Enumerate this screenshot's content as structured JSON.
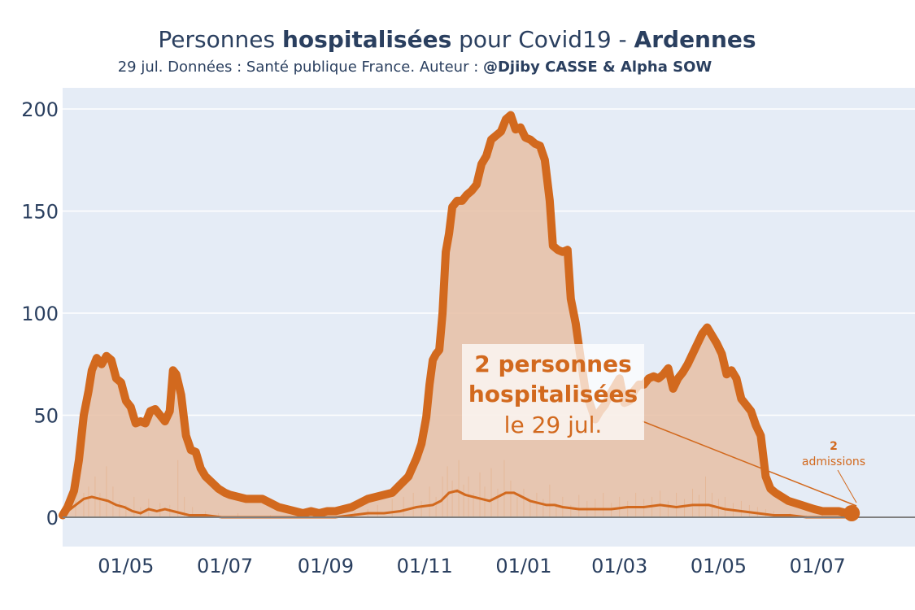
{
  "title": {
    "part1": "Personnes ",
    "part2": "hospitalisées",
    "part3": " pour Covid19 - ",
    "part4": "Ardennes"
  },
  "subtitle": {
    "part1": "29 jul. Données : Santé publique France. Auteur : ",
    "part2": "@Djiby CASSE & Alpha SOW"
  },
  "annotation": {
    "line1": "2 personnes",
    "line2": "hospitalisées",
    "line3": "le 29 jul.",
    "small_value": "2",
    "small_label": "admissions"
  },
  "colors": {
    "accent": "#d2691e",
    "fill": "#e8c0a4",
    "plot_bg": "#e5ecf6",
    "text": "#2a3f5f",
    "zero_line": "#7f7f7f"
  },
  "chart_data": {
    "type": "area",
    "x_axis": {
      "ticks": [
        "01/05",
        "01/07",
        "01/09",
        "01/11",
        "01/01",
        "01/03",
        "01/05",
        "01/07"
      ],
      "tick_days": [
        31,
        92,
        154,
        215,
        276,
        335,
        396,
        457
      ],
      "range_days": [
        -8,
        517
      ]
    },
    "y_axis": {
      "ticks": [
        "0",
        "50",
        "100",
        "150",
        "200"
      ],
      "tick_values": [
        0,
        50,
        100,
        150,
        200
      ],
      "range": [
        -15,
        200
      ]
    },
    "grid": true,
    "legend": "none",
    "series": [
      {
        "name": "hospitalisations",
        "style": "thick-line-area",
        "points": [
          [
            -8,
            1
          ],
          [
            -5,
            5
          ],
          [
            -1,
            13
          ],
          [
            2,
            28
          ],
          [
            5,
            50
          ],
          [
            8,
            62
          ],
          [
            10,
            72
          ],
          [
            13,
            78
          ],
          [
            16,
            75
          ],
          [
            19,
            79
          ],
          [
            22,
            77
          ],
          [
            25,
            68
          ],
          [
            28,
            66
          ],
          [
            31,
            57
          ],
          [
            34,
            54
          ],
          [
            37,
            46
          ],
          [
            40,
            47
          ],
          [
            43,
            46
          ],
          [
            46,
            52
          ],
          [
            49,
            53
          ],
          [
            52,
            50
          ],
          [
            55,
            47
          ],
          [
            58,
            52
          ],
          [
            60,
            72
          ],
          [
            62,
            70
          ],
          [
            65,
            60
          ],
          [
            68,
            40
          ],
          [
            71,
            33
          ],
          [
            74,
            32
          ],
          [
            77,
            24
          ],
          [
            80,
            20
          ],
          [
            84,
            17
          ],
          [
            88,
            14
          ],
          [
            92,
            12
          ],
          [
            95,
            11
          ],
          [
            100,
            10
          ],
          [
            105,
            9
          ],
          [
            110,
            9
          ],
          [
            115,
            9
          ],
          [
            120,
            7
          ],
          [
            125,
            5
          ],
          [
            130,
            4
          ],
          [
            135,
            3
          ],
          [
            140,
            2
          ],
          [
            145,
            3
          ],
          [
            150,
            2
          ],
          [
            155,
            3
          ],
          [
            160,
            3
          ],
          [
            165,
            4
          ],
          [
            170,
            5
          ],
          [
            175,
            7
          ],
          [
            180,
            9
          ],
          [
            185,
            10
          ],
          [
            190,
            11
          ],
          [
            195,
            12
          ],
          [
            200,
            16
          ],
          [
            205,
            20
          ],
          [
            210,
            29
          ],
          [
            213,
            36
          ],
          [
            216,
            49
          ],
          [
            218,
            65
          ],
          [
            220,
            77
          ],
          [
            222,
            80
          ],
          [
            224,
            82
          ],
          [
            226,
            100
          ],
          [
            228,
            130
          ],
          [
            230,
            139
          ],
          [
            232,
            152
          ],
          [
            235,
            155
          ],
          [
            238,
            155
          ],
          [
            241,
            158
          ],
          [
            244,
            160
          ],
          [
            247,
            163
          ],
          [
            250,
            173
          ],
          [
            253,
            177
          ],
          [
            256,
            185
          ],
          [
            259,
            187
          ],
          [
            262,
            189
          ],
          [
            265,
            195
          ],
          [
            268,
            197
          ],
          [
            271,
            190
          ],
          [
            274,
            191
          ],
          [
            277,
            186
          ],
          [
            280,
            185
          ],
          [
            283,
            183
          ],
          [
            286,
            182
          ],
          [
            289,
            175
          ],
          [
            292,
            155
          ],
          [
            294,
            133
          ],
          [
            297,
            131
          ],
          [
            300,
            130
          ],
          [
            303,
            131
          ],
          [
            305,
            107
          ],
          [
            308,
            95
          ],
          [
            311,
            78
          ],
          [
            314,
            62
          ],
          [
            317,
            55
          ],
          [
            320,
            48
          ],
          [
            323,
            52
          ],
          [
            326,
            55
          ],
          [
            329,
            60
          ],
          [
            332,
            64
          ],
          [
            335,
            68
          ],
          [
            338,
            56
          ],
          [
            341,
            57
          ],
          [
            344,
            62
          ],
          [
            347,
            65
          ],
          [
            350,
            65
          ],
          [
            353,
            68
          ],
          [
            356,
            69
          ],
          [
            359,
            68
          ],
          [
            362,
            70
          ],
          [
            365,
            73
          ],
          [
            368,
            63
          ],
          [
            371,
            68
          ],
          [
            374,
            71
          ],
          [
            377,
            75
          ],
          [
            380,
            80
          ],
          [
            383,
            85
          ],
          [
            386,
            90
          ],
          [
            389,
            93
          ],
          [
            392,
            89
          ],
          [
            395,
            85
          ],
          [
            398,
            80
          ],
          [
            401,
            70
          ],
          [
            404,
            72
          ],
          [
            407,
            68
          ],
          [
            410,
            58
          ],
          [
            413,
            55
          ],
          [
            416,
            52
          ],
          [
            419,
            45
          ],
          [
            422,
            40
          ],
          [
            425,
            20
          ],
          [
            428,
            14
          ],
          [
            431,
            12
          ],
          [
            435,
            10
          ],
          [
            439,
            8
          ],
          [
            443,
            7
          ],
          [
            447,
            6
          ],
          [
            451,
            5
          ],
          [
            455,
            4
          ],
          [
            460,
            3
          ],
          [
            465,
            3
          ],
          [
            470,
            3
          ],
          [
            475,
            2
          ],
          [
            478,
            2
          ]
        ]
      },
      {
        "name": "admissions",
        "style": "thin-line",
        "points": [
          [
            -8,
            1
          ],
          [
            0,
            6
          ],
          [
            5,
            9
          ],
          [
            10,
            10
          ],
          [
            15,
            9
          ],
          [
            20,
            8
          ],
          [
            25,
            6
          ],
          [
            30,
            5
          ],
          [
            35,
            3
          ],
          [
            40,
            2
          ],
          [
            45,
            4
          ],
          [
            50,
            3
          ],
          [
            55,
            4
          ],
          [
            60,
            3
          ],
          [
            65,
            2
          ],
          [
            70,
            1
          ],
          [
            80,
            1
          ],
          [
            90,
            0
          ],
          [
            100,
            0
          ],
          [
            120,
            0
          ],
          [
            140,
            0
          ],
          [
            160,
            0
          ],
          [
            170,
            1
          ],
          [
            180,
            2
          ],
          [
            190,
            2
          ],
          [
            200,
            3
          ],
          [
            210,
            5
          ],
          [
            220,
            6
          ],
          [
            225,
            8
          ],
          [
            230,
            12
          ],
          [
            235,
            13
          ],
          [
            240,
            11
          ],
          [
            245,
            10
          ],
          [
            250,
            9
          ],
          [
            255,
            8
          ],
          [
            260,
            10
          ],
          [
            265,
            12
          ],
          [
            270,
            12
          ],
          [
            275,
            10
          ],
          [
            280,
            8
          ],
          [
            285,
            7
          ],
          [
            290,
            6
          ],
          [
            295,
            6
          ],
          [
            300,
            5
          ],
          [
            310,
            4
          ],
          [
            320,
            4
          ],
          [
            330,
            4
          ],
          [
            340,
            5
          ],
          [
            350,
            5
          ],
          [
            360,
            6
          ],
          [
            370,
            5
          ],
          [
            380,
            6
          ],
          [
            390,
            6
          ],
          [
            400,
            4
          ],
          [
            410,
            3
          ],
          [
            420,
            2
          ],
          [
            430,
            1
          ],
          [
            440,
            1
          ],
          [
            450,
            0
          ],
          [
            460,
            0
          ],
          [
            478,
            0
          ]
        ]
      }
    ],
    "spikes": {
      "name": "admissions quotidiennes",
      "style": "bars",
      "points": [
        [
          0,
          8
        ],
        [
          5,
          12
        ],
        [
          8,
          15
        ],
        [
          12,
          20
        ],
        [
          15,
          12
        ],
        [
          19,
          25
        ],
        [
          23,
          15
        ],
        [
          27,
          8
        ],
        [
          31,
          6
        ],
        [
          36,
          10
        ],
        [
          40,
          5
        ],
        [
          45,
          9
        ],
        [
          52,
          7
        ],
        [
          58,
          6
        ],
        [
          63,
          28
        ],
        [
          67,
          10
        ],
        [
          72,
          5
        ],
        [
          80,
          3
        ],
        [
          88,
          2
        ],
        [
          100,
          2
        ],
        [
          120,
          1
        ],
        [
          150,
          1
        ],
        [
          172,
          3
        ],
        [
          180,
          4
        ],
        [
          186,
          6
        ],
        [
          195,
          9
        ],
        [
          202,
          10
        ],
        [
          208,
          12
        ],
        [
          213,
          8
        ],
        [
          218,
          15
        ],
        [
          222,
          10
        ],
        [
          226,
          20
        ],
        [
          229,
          25
        ],
        [
          232,
          18
        ],
        [
          236,
          28
        ],
        [
          239,
          16
        ],
        [
          242,
          20
        ],
        [
          245,
          12
        ],
        [
          249,
          22
        ],
        [
          252,
          15
        ],
        [
          256,
          24
        ],
        [
          260,
          14
        ],
        [
          264,
          28
        ],
        [
          268,
          18
        ],
        [
          272,
          10
        ],
        [
          276,
          14
        ],
        [
          280,
          8
        ],
        [
          284,
          12
        ],
        [
          288,
          9
        ],
        [
          292,
          16
        ],
        [
          296,
          7
        ],
        [
          300,
          10
        ],
        [
          305,
          6
        ],
        [
          310,
          11
        ],
        [
          315,
          8
        ],
        [
          320,
          9
        ],
        [
          325,
          12
        ],
        [
          330,
          7
        ],
        [
          335,
          10
        ],
        [
          340,
          8
        ],
        [
          345,
          12
        ],
        [
          350,
          9
        ],
        [
          355,
          10
        ],
        [
          360,
          13
        ],
        [
          365,
          8
        ],
        [
          370,
          12
        ],
        [
          375,
          9
        ],
        [
          380,
          14
        ],
        [
          384,
          11
        ],
        [
          388,
          20
        ],
        [
          392,
          12
        ],
        [
          396,
          9
        ],
        [
          400,
          10
        ],
        [
          405,
          7
        ],
        [
          410,
          8
        ],
        [
          415,
          6
        ],
        [
          420,
          5
        ],
        [
          425,
          4
        ],
        [
          430,
          3
        ],
        [
          440,
          2
        ],
        [
          450,
          1
        ],
        [
          460,
          2
        ],
        [
          470,
          1
        ]
      ]
    },
    "last_point": [
      478,
      2
    ]
  }
}
